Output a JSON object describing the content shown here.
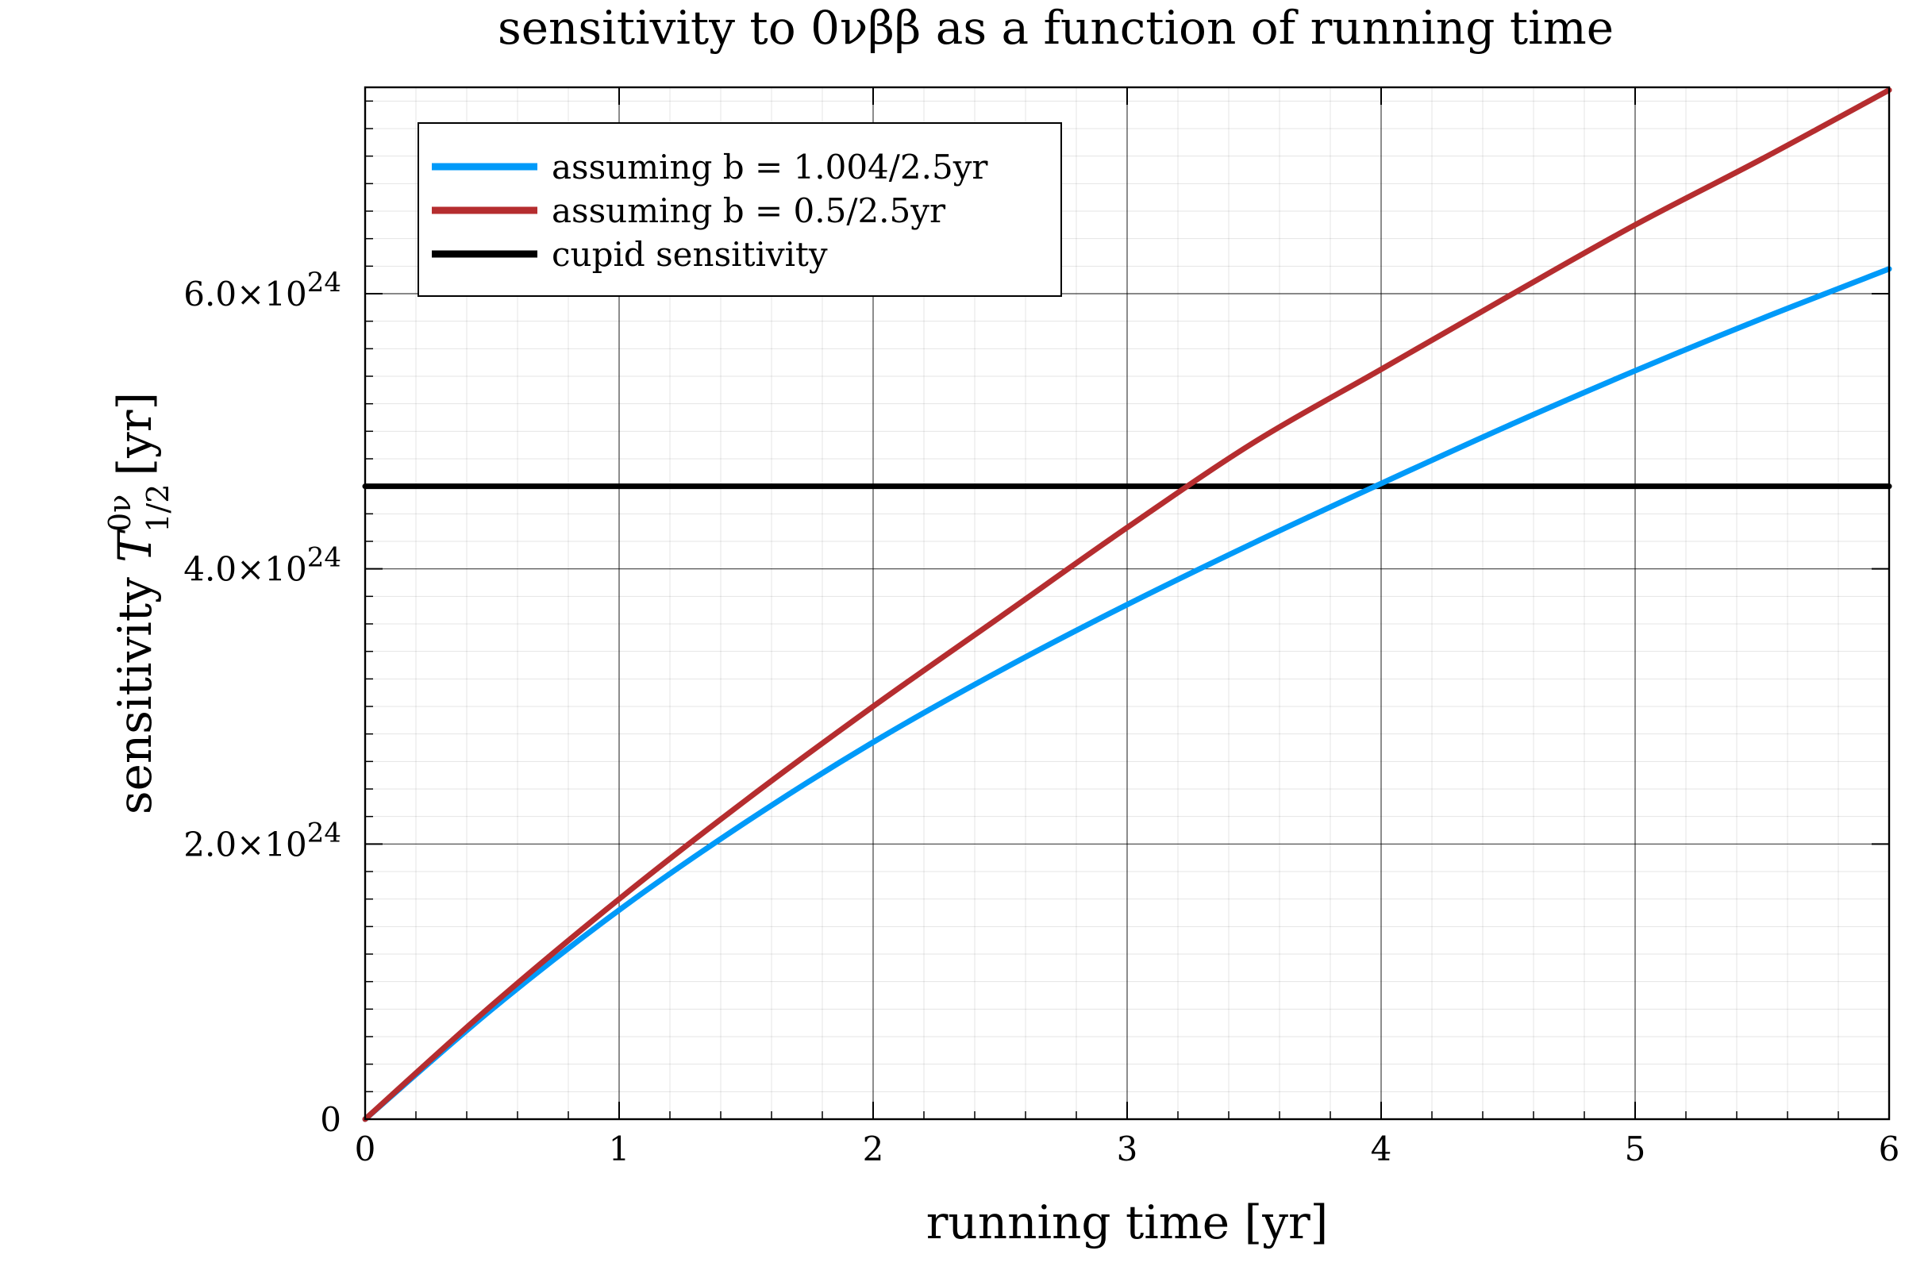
{
  "chart_data": {
    "type": "line",
    "title": "sensitivity to 0νββ as a function of running time",
    "xlabel": "running time [yr]",
    "ylabel_main": "sensitivity ",
    "ylabel_symbol": "T",
    "ylabel_sup": "0ν",
    "ylabel_sub": "1/2",
    "ylabel_unit": "[yr]",
    "xlim": [
      0,
      6
    ],
    "ylim": [
      0,
      7.5e+24
    ],
    "x_ticks": [
      0,
      1,
      2,
      3,
      4,
      5,
      6
    ],
    "x_tick_labels": [
      "0",
      "1",
      "2",
      "3",
      "4",
      "5",
      "6"
    ],
    "y_ticks": [
      0,
      2e+24,
      4e+24,
      6e+24
    ],
    "y_tick_labels": [
      {
        "mantissa": "0",
        "exponent": ""
      },
      {
        "mantissa": "2.0×10",
        "exponent": "24"
      },
      {
        "mantissa": "4.0×10",
        "exponent": "24"
      },
      {
        "mantissa": "6.0×10",
        "exponent": "24"
      }
    ],
    "grid": true,
    "legend_position": "top-left",
    "series": [
      {
        "name": "assuming b = 1.004/2.5yr",
        "color": "#009af9",
        "x": [
          0,
          0.5,
          1,
          1.5,
          2,
          2.5,
          3,
          3.5,
          4,
          4.5,
          5,
          5.5,
          6
        ],
        "y": [
          0,
          8e+23,
          1.52e+24,
          2.16e+24,
          2.74e+24,
          3.26e+24,
          3.74e+24,
          4.19e+24,
          4.62e+24,
          5.04e+24,
          5.44e+24,
          5.82e+24,
          6.18e+24
        ]
      },
      {
        "name": "assuming b = 0.5/2.5yr",
        "color": "#b52d2f",
        "x": [
          0,
          0.5,
          1,
          1.5,
          2,
          2.5,
          3,
          3.5,
          4,
          4.5,
          5,
          5.5,
          6
        ],
        "y": [
          0,
          8.3e+23,
          1.6e+24,
          2.32e+24,
          3e+24,
          3.65e+24,
          4.3e+24,
          4.92e+24,
          5.45e+24,
          5.98e+24,
          6.5e+24,
          6.98e+24,
          7.48e+24
        ]
      },
      {
        "name": "cupid sensitivity",
        "color": "#000000",
        "x": [
          0,
          6
        ],
        "y": [
          4.6e+24,
          4.6e+24
        ]
      }
    ]
  }
}
